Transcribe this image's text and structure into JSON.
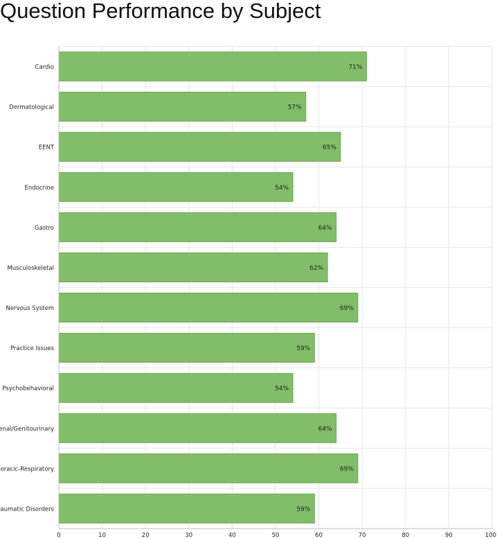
{
  "chart_data": {
    "type": "bar",
    "orientation": "horizontal",
    "title": "Question Performance by Subject",
    "categories": [
      "Cardio",
      "Dermatological",
      "EENT",
      "Endocrine",
      "Gastro",
      "Musculoskeletal",
      "Nervous System",
      "Practice Issues",
      "Psychobehavioral",
      "Renal/Genitourinary",
      "Thoracic-Respiratory",
      "Traumatic Disorders"
    ],
    "values": [
      71,
      57,
      65,
      54,
      64,
      62,
      69,
      59,
      54,
      64,
      69,
      59
    ],
    "data_labels": [
      "71%",
      "57%",
      "65%",
      "54%",
      "64%",
      "62%",
      "69%",
      "59%",
      "54%",
      "64%",
      "69%",
      "59%"
    ],
    "xlim": [
      0,
      100
    ],
    "x_ticks": [
      0,
      10,
      20,
      30,
      40,
      50,
      60,
      70,
      80,
      90,
      100
    ],
    "x_tick_labels": [
      "0",
      "10",
      "20",
      "30",
      "40",
      "50",
      "60",
      "70",
      "80",
      "90",
      "100"
    ],
    "xlabel": "",
    "ylabel": "",
    "grid": true,
    "legend": "none",
    "colors": {
      "bar_fill": "#82bd69",
      "bar_stroke": "#6aa454",
      "grid": "#e6e6e6",
      "axis": "#bdbdbd",
      "text": "#222222"
    }
  }
}
